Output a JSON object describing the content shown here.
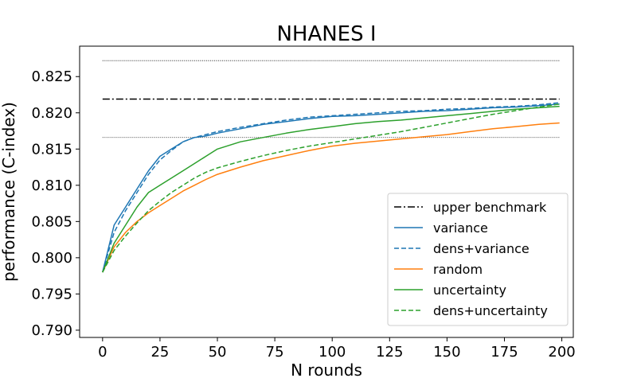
{
  "chart_data": {
    "type": "line",
    "title": "NHANES I",
    "xlabel": "N rounds",
    "ylabel": "performance (C-index)",
    "xlim": [
      -10,
      205
    ],
    "ylim": [
      0.789,
      0.8292
    ],
    "xticks": [
      0,
      25,
      50,
      75,
      100,
      125,
      150,
      175,
      200
    ],
    "yticks": [
      0.79,
      0.795,
      0.8,
      0.805,
      0.81,
      0.815,
      0.82,
      0.825
    ],
    "ytick_labels": [
      "0.790",
      "0.795",
      "0.800",
      "0.805",
      "0.810",
      "0.815",
      "0.820",
      "0.825"
    ],
    "grid": false,
    "legend_position": "lower-right",
    "reference_lines": [
      {
        "name": "upper benchmark",
        "y": 0.8219,
        "style": "dashdot",
        "color": "#000000"
      },
      {
        "y": 0.8272,
        "style": "dotted",
        "color": "#000000"
      },
      {
        "y": 0.8166,
        "style": "dotted",
        "color": "#000000"
      }
    ],
    "x_range": [
      0,
      199
    ],
    "series": [
      {
        "name": "variance",
        "color": "#1f77b4",
        "style": "solid",
        "x": [
          0,
          5,
          10,
          15,
          20,
          25,
          30,
          35,
          40,
          45,
          50,
          60,
          70,
          80,
          90,
          100,
          110,
          120,
          130,
          140,
          150,
          160,
          170,
          180,
          190,
          199
        ],
        "y": [
          0.798,
          0.8045,
          0.807,
          0.8095,
          0.812,
          0.814,
          0.815,
          0.816,
          0.8166,
          0.8168,
          0.8172,
          0.8178,
          0.8184,
          0.8188,
          0.8192,
          0.8195,
          0.8196,
          0.8198,
          0.82,
          0.8202,
          0.8203,
          0.8205,
          0.8207,
          0.8208,
          0.821,
          0.8212
        ]
      },
      {
        "name": "dens+variance",
        "color": "#1f77b4",
        "style": "dashed",
        "x": [
          0,
          5,
          10,
          15,
          20,
          25,
          30,
          35,
          40,
          45,
          50,
          60,
          70,
          80,
          90,
          100,
          110,
          120,
          130,
          140,
          150,
          160,
          170,
          180,
          190,
          199
        ],
        "y": [
          0.798,
          0.8035,
          0.8065,
          0.809,
          0.8115,
          0.8135,
          0.8148,
          0.816,
          0.8166,
          0.817,
          0.8174,
          0.818,
          0.8185,
          0.819,
          0.8194,
          0.8196,
          0.8198,
          0.82,
          0.8202,
          0.8203,
          0.8205,
          0.8206,
          0.8208,
          0.8209,
          0.8211,
          0.8214
        ]
      },
      {
        "name": "random",
        "color": "#ff7f0e",
        "style": "solid",
        "x": [
          0,
          5,
          10,
          15,
          20,
          25,
          30,
          35,
          40,
          45,
          50,
          60,
          70,
          80,
          90,
          100,
          110,
          120,
          130,
          140,
          150,
          160,
          170,
          180,
          190,
          199
        ],
        "y": [
          0.798,
          0.8015,
          0.8035,
          0.805,
          0.8062,
          0.8072,
          0.8082,
          0.8092,
          0.81,
          0.8108,
          0.8115,
          0.8125,
          0.8134,
          0.8141,
          0.8148,
          0.8154,
          0.8158,
          0.8161,
          0.8164,
          0.8167,
          0.817,
          0.8174,
          0.8178,
          0.8181,
          0.8184,
          0.8186
        ]
      },
      {
        "name": "uncertainty",
        "color": "#2ca02c",
        "style": "solid",
        "x": [
          0,
          5,
          10,
          15,
          20,
          25,
          30,
          35,
          40,
          45,
          50,
          60,
          70,
          80,
          90,
          100,
          110,
          120,
          130,
          140,
          150,
          160,
          170,
          180,
          190,
          199
        ],
        "y": [
          0.798,
          0.802,
          0.8045,
          0.807,
          0.809,
          0.81,
          0.811,
          0.812,
          0.813,
          0.814,
          0.815,
          0.816,
          0.8166,
          0.8172,
          0.8177,
          0.8181,
          0.8185,
          0.8188,
          0.819,
          0.8193,
          0.8196,
          0.8199,
          0.8202,
          0.8205,
          0.8207,
          0.8209
        ]
      },
      {
        "name": "dens+uncertainty",
        "color": "#2ca02c",
        "style": "dashed",
        "x": [
          0,
          5,
          10,
          15,
          20,
          25,
          30,
          35,
          40,
          45,
          50,
          60,
          70,
          80,
          90,
          100,
          110,
          120,
          130,
          140,
          150,
          160,
          170,
          180,
          190,
          199
        ],
        "y": [
          0.798,
          0.801,
          0.803,
          0.8048,
          0.8065,
          0.8078,
          0.809,
          0.81,
          0.811,
          0.8118,
          0.8124,
          0.8133,
          0.8141,
          0.8148,
          0.8154,
          0.8159,
          0.8164,
          0.8169,
          0.8174,
          0.818,
          0.8186,
          0.8192,
          0.8198,
          0.8203,
          0.8208,
          0.8212
        ]
      }
    ]
  }
}
